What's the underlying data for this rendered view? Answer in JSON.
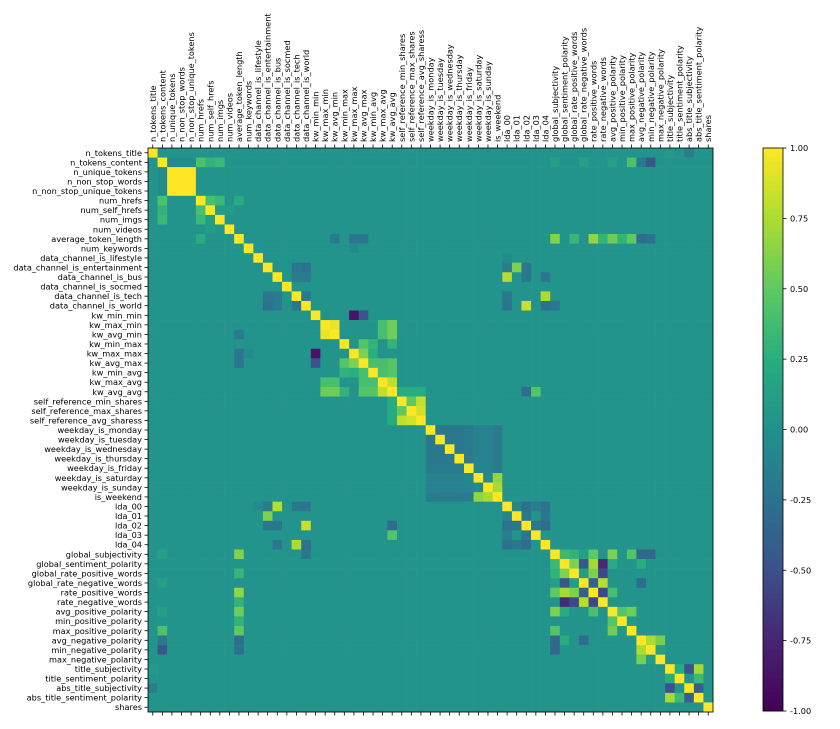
{
  "chart_data": {
    "type": "heatmap",
    "title": "",
    "xlabel": "",
    "ylabel": "",
    "labels": [
      "n_tokens_title",
      "n_tokens_content",
      "n_unique_tokens",
      "n_non_stop_words",
      "n_non_stop_unique_tokens",
      "num_hrefs",
      "num_self_hrefs",
      "num_imgs",
      "num_videos",
      "average_token_length",
      "num_keywords",
      "data_channel_is_lifestyle",
      "data_channel_is_entertainment",
      "data_channel_is_bus",
      "data_channel_is_socmed",
      "data_channel_is_tech",
      "data_channel_is_world",
      "kw_min_min",
      "kw_max_min",
      "kw_avg_min",
      "kw_min_max",
      "kw_max_max",
      "kw_avg_max",
      "kw_min_avg",
      "kw_max_avg",
      "kw_avg_avg",
      "self_reference_min_shares",
      "self_reference_max_shares",
      "self_reference_avg_sharess",
      "weekday_is_monday",
      "weekday_is_tuesday",
      "weekday_is_wednesday",
      "weekday_is_thursday",
      "weekday_is_friday",
      "weekday_is_saturday",
      "weekday_is_sunday",
      "is_weekend",
      "lda_00",
      "lda_01",
      "lda_02",
      "lda_03",
      "lda_04",
      "global_subjectivity",
      "global_sentiment_polarity",
      "global_rate_positive_words",
      "global_rate_negative_words",
      "rate_positive_words",
      "rate_negative_words",
      "avg_positive_polarity",
      "min_positive_polarity",
      "max_positive_polarity",
      "avg_negative_polarity",
      "min_negative_polarity",
      "max_negative_polarity",
      "title_subjectivity",
      "title_sentiment_polarity",
      "abs_title_subjectivity",
      "abs_title_sentiment_polarity",
      "shares"
    ],
    "vmin": -1.0,
    "vmax": 1.0,
    "colormap": "viridis",
    "colorbar_ticks": [
      "1.00",
      "0.75",
      "0.50",
      "0.25",
      "0.00",
      "-0.25",
      "-0.50",
      "-0.75",
      "-1.00"
    ],
    "colorbar_tick_values": [
      1.0,
      0.75,
      0.5,
      0.25,
      0.0,
      -0.25,
      -0.5,
      -0.75,
      -1.0
    ],
    "cells": [
      [
        2,
        3,
        1.0
      ],
      [
        3,
        2,
        1.0
      ],
      [
        2,
        4,
        1.0
      ],
      [
        4,
        2,
        1.0
      ],
      [
        3,
        4,
        1.0
      ],
      [
        4,
        3,
        1.0
      ],
      [
        1,
        2,
        -0.05
      ],
      [
        2,
        1,
        -0.05
      ],
      [
        1,
        3,
        -0.05
      ],
      [
        3,
        1,
        -0.05
      ],
      [
        1,
        4,
        -0.05
      ],
      [
        4,
        1,
        -0.05
      ],
      [
        1,
        5,
        0.42
      ],
      [
        5,
        1,
        0.42
      ],
      [
        1,
        6,
        0.3
      ],
      [
        6,
        1,
        0.3
      ],
      [
        1,
        7,
        0.34
      ],
      [
        7,
        1,
        0.34
      ],
      [
        1,
        9,
        0.03
      ],
      [
        9,
        1,
        0.03
      ],
      [
        1,
        42,
        0.13
      ],
      [
        42,
        1,
        0.13
      ],
      [
        1,
        45,
        0.13
      ],
      [
        45,
        1,
        0.13
      ],
      [
        1,
        51,
        -0.2
      ],
      [
        51,
        1,
        -0.2
      ],
      [
        1,
        52,
        -0.45
      ],
      [
        52,
        1,
        -0.45
      ],
      [
        1,
        50,
        0.42
      ],
      [
        50,
        1,
        0.42
      ],
      [
        1,
        48,
        0.13
      ],
      [
        48,
        1,
        0.13
      ],
      [
        5,
        6,
        0.4
      ],
      [
        6,
        5,
        0.4
      ],
      [
        5,
        7,
        0.34
      ],
      [
        7,
        5,
        0.34
      ],
      [
        5,
        9,
        0.22
      ],
      [
        9,
        5,
        0.22
      ],
      [
        6,
        7,
        0.1
      ],
      [
        7,
        6,
        0.1
      ],
      [
        6,
        8,
        0.1
      ],
      [
        8,
        6,
        0.1
      ],
      [
        9,
        42,
        0.62
      ],
      [
        42,
        9,
        0.62
      ],
      [
        9,
        48,
        0.55
      ],
      [
        48,
        9,
        0.55
      ],
      [
        9,
        50,
        0.5
      ],
      [
        50,
        9,
        0.5
      ],
      [
        9,
        51,
        -0.3
      ],
      [
        51,
        9,
        -0.3
      ],
      [
        9,
        52,
        -0.25
      ],
      [
        52,
        9,
        -0.25
      ],
      [
        9,
        44,
        0.32
      ],
      [
        44,
        9,
        0.32
      ],
      [
        9,
        46,
        0.66
      ],
      [
        46,
        9,
        0.66
      ],
      [
        9,
        47,
        0.3
      ],
      [
        47,
        9,
        0.3
      ],
      [
        9,
        49,
        0.3
      ],
      [
        49,
        9,
        0.3
      ],
      [
        9,
        19,
        -0.18
      ],
      [
        19,
        9,
        -0.18
      ],
      [
        9,
        21,
        -0.22
      ],
      [
        21,
        9,
        -0.22
      ],
      [
        9,
        22,
        -0.22
      ],
      [
        22,
        9,
        -0.22
      ],
      [
        10,
        21,
        -0.05
      ],
      [
        21,
        10,
        -0.05
      ],
      [
        11,
        37,
        -0.05
      ],
      [
        37,
        11,
        -0.05
      ],
      [
        12,
        38,
        0.6
      ],
      [
        38,
        12,
        0.6
      ],
      [
        12,
        37,
        -0.18
      ],
      [
        37,
        12,
        -0.18
      ],
      [
        12,
        39,
        -0.2
      ],
      [
        39,
        12,
        -0.2
      ],
      [
        13,
        37,
        0.77
      ],
      [
        37,
        13,
        0.77
      ],
      [
        13,
        39,
        -0.2
      ],
      [
        39,
        13,
        -0.2
      ],
      [
        13,
        41,
        -0.2
      ],
      [
        41,
        13,
        -0.2
      ],
      [
        13,
        16,
        -0.18
      ],
      [
        16,
        13,
        -0.18
      ],
      [
        13,
        15,
        -0.18
      ],
      [
        15,
        13,
        -0.18
      ],
      [
        15,
        41,
        0.75
      ],
      [
        41,
        15,
        0.75
      ],
      [
        15,
        16,
        -0.2
      ],
      [
        16,
        15,
        -0.2
      ],
      [
        15,
        37,
        -0.2
      ],
      [
        37,
        15,
        -0.2
      ],
      [
        16,
        39,
        0.83
      ],
      [
        39,
        16,
        0.83
      ],
      [
        16,
        42,
        -0.2
      ],
      [
        42,
        16,
        -0.2
      ],
      [
        16,
        41,
        -0.25
      ],
      [
        41,
        16,
        -0.25
      ],
      [
        16,
        37,
        -0.22
      ],
      [
        37,
        16,
        -0.22
      ],
      [
        12,
        16,
        -0.25
      ],
      [
        16,
        12,
        -0.25
      ],
      [
        12,
        15,
        -0.22
      ],
      [
        15,
        12,
        -0.22
      ],
      [
        17,
        21,
        -0.86
      ],
      [
        21,
        17,
        -0.86
      ],
      [
        17,
        22,
        -0.5
      ],
      [
        22,
        17,
        -0.5
      ],
      [
        17,
        18,
        0.0
      ],
      [
        18,
        17,
        0.0
      ],
      [
        18,
        19,
        0.94
      ],
      [
        19,
        18,
        0.94
      ],
      [
        18,
        25,
        0.55
      ],
      [
        25,
        18,
        0.55
      ],
      [
        19,
        25,
        0.55
      ],
      [
        25,
        19,
        0.55
      ],
      [
        18,
        24,
        0.4
      ],
      [
        24,
        18,
        0.4
      ],
      [
        19,
        24,
        0.4
      ],
      [
        24,
        19,
        0.4
      ],
      [
        20,
        22,
        0.45
      ],
      [
        22,
        20,
        0.45
      ],
      [
        20,
        23,
        0.3
      ],
      [
        23,
        20,
        0.3
      ],
      [
        20,
        25,
        0.3
      ],
      [
        25,
        20,
        0.3
      ],
      [
        21,
        22,
        0.6
      ],
      [
        22,
        21,
        0.6
      ],
      [
        21,
        23,
        0.25
      ],
      [
        23,
        21,
        0.25
      ],
      [
        22,
        23,
        0.4
      ],
      [
        23,
        22,
        0.4
      ],
      [
        22,
        24,
        0.4
      ],
      [
        24,
        22,
        0.4
      ],
      [
        22,
        25,
        0.45
      ],
      [
        25,
        22,
        0.45
      ],
      [
        23,
        24,
        0.4
      ],
      [
        24,
        23,
        0.4
      ],
      [
        23,
        25,
        0.45
      ],
      [
        25,
        23,
        0.45
      ],
      [
        24,
        25,
        0.81
      ],
      [
        25,
        24,
        0.81
      ],
      [
        25,
        26,
        0.22
      ],
      [
        26,
        25,
        0.22
      ],
      [
        25,
        27,
        0.22
      ],
      [
        27,
        25,
        0.22
      ],
      [
        25,
        28,
        0.22
      ],
      [
        28,
        25,
        0.22
      ],
      [
        25,
        39,
        -0.3
      ],
      [
        39,
        25,
        -0.3
      ],
      [
        25,
        40,
        0.45
      ],
      [
        40,
        25,
        0.45
      ],
      [
        26,
        27,
        0.5
      ],
      [
        27,
        26,
        0.5
      ],
      [
        26,
        28,
        0.82
      ],
      [
        28,
        26,
        0.82
      ],
      [
        27,
        28,
        0.86
      ],
      [
        28,
        27,
        0.86
      ],
      [
        29,
        30,
        -0.2
      ],
      [
        30,
        29,
        -0.2
      ],
      [
        29,
        31,
        -0.2
      ],
      [
        31,
        29,
        -0.2
      ],
      [
        29,
        32,
        -0.2
      ],
      [
        32,
        29,
        -0.2
      ],
      [
        29,
        33,
        -0.18
      ],
      [
        33,
        29,
        -0.18
      ],
      [
        29,
        34,
        -0.12
      ],
      [
        34,
        29,
        -0.12
      ],
      [
        29,
        35,
        -0.12
      ],
      [
        35,
        29,
        -0.12
      ],
      [
        30,
        31,
        -0.2
      ],
      [
        31,
        30,
        -0.2
      ],
      [
        30,
        32,
        -0.2
      ],
      [
        32,
        30,
        -0.2
      ],
      [
        30,
        33,
        -0.18
      ],
      [
        33,
        30,
        -0.18
      ],
      [
        31,
        32,
        -0.2
      ],
      [
        32,
        31,
        -0.2
      ],
      [
        31,
        33,
        -0.18
      ],
      [
        33,
        31,
        -0.18
      ],
      [
        32,
        33,
        -0.18
      ],
      [
        33,
        32,
        -0.18
      ],
      [
        30,
        34,
        -0.12
      ],
      [
        34,
        30,
        -0.12
      ],
      [
        31,
        34,
        -0.12
      ],
      [
        34,
        31,
        -0.12
      ],
      [
        32,
        34,
        -0.12
      ],
      [
        34,
        32,
        -0.12
      ],
      [
        33,
        34,
        -0.1
      ],
      [
        34,
        33,
        -0.1
      ],
      [
        30,
        35,
        -0.12
      ],
      [
        35,
        30,
        -0.12
      ],
      [
        31,
        35,
        -0.12
      ],
      [
        35,
        31,
        -0.12
      ],
      [
        32,
        35,
        -0.12
      ],
      [
        35,
        32,
        -0.12
      ],
      [
        33,
        35,
        -0.1
      ],
      [
        35,
        33,
        -0.1
      ],
      [
        34,
        35,
        -0.07
      ],
      [
        35,
        34,
        -0.07
      ],
      [
        29,
        36,
        -0.18
      ],
      [
        36,
        29,
        -0.18
      ],
      [
        30,
        36,
        -0.18
      ],
      [
        36,
        30,
        -0.18
      ],
      [
        31,
        36,
        -0.18
      ],
      [
        36,
        31,
        -0.18
      ],
      [
        32,
        36,
        -0.18
      ],
      [
        36,
        32,
        -0.18
      ],
      [
        33,
        36,
        -0.16
      ],
      [
        36,
        33,
        -0.16
      ],
      [
        34,
        36,
        0.66
      ],
      [
        36,
        34,
        0.66
      ],
      [
        35,
        36,
        0.73
      ],
      [
        36,
        35,
        0.73
      ],
      [
        37,
        38,
        -0.1
      ],
      [
        38,
        37,
        -0.1
      ],
      [
        37,
        39,
        -0.25
      ],
      [
        39,
        37,
        -0.25
      ],
      [
        37,
        40,
        -0.15
      ],
      [
        40,
        37,
        -0.15
      ],
      [
        37,
        41,
        -0.25
      ],
      [
        41,
        37,
        -0.25
      ],
      [
        38,
        39,
        -0.2
      ],
      [
        39,
        38,
        -0.2
      ],
      [
        38,
        41,
        -0.2
      ],
      [
        41,
        38,
        -0.2
      ],
      [
        39,
        41,
        -0.3
      ],
      [
        41,
        39,
        -0.3
      ],
      [
        39,
        40,
        -0.2
      ],
      [
        40,
        39,
        -0.2
      ],
      [
        42,
        43,
        0.35
      ],
      [
        43,
        42,
        0.35
      ],
      [
        42,
        44,
        0.3
      ],
      [
        44,
        42,
        0.3
      ],
      [
        42,
        45,
        0.13
      ],
      [
        45,
        42,
        0.13
      ],
      [
        42,
        46,
        0.5
      ],
      [
        46,
        42,
        0.5
      ],
      [
        42,
        48,
        0.6
      ],
      [
        48,
        42,
        0.6
      ],
      [
        42,
        50,
        0.45
      ],
      [
        50,
        42,
        0.45
      ],
      [
        42,
        51,
        -0.33
      ],
      [
        51,
        42,
        -0.33
      ],
      [
        42,
        52,
        -0.33
      ],
      [
        52,
        42,
        -0.33
      ],
      [
        43,
        44,
        0.6
      ],
      [
        44,
        43,
        0.6
      ],
      [
        43,
        45,
        -0.45
      ],
      [
        45,
        43,
        -0.45
      ],
      [
        43,
        46,
        0.72
      ],
      [
        46,
        43,
        0.72
      ],
      [
        43,
        47,
        -0.72
      ],
      [
        47,
        43,
        -0.72
      ],
      [
        43,
        48,
        0.23
      ],
      [
        48,
        43,
        0.23
      ],
      [
        43,
        51,
        0.24
      ],
      [
        51,
        43,
        0.24
      ],
      [
        44,
        45,
        0.1
      ],
      [
        45,
        44,
        0.1
      ],
      [
        44,
        46,
        0.6
      ],
      [
        46,
        44,
        0.6
      ],
      [
        44,
        47,
        -0.55
      ],
      [
        47,
        44,
        -0.55
      ],
      [
        45,
        46,
        -0.38
      ],
      [
        46,
        45,
        -0.38
      ],
      [
        45,
        47,
        0.78
      ],
      [
        47,
        45,
        0.78
      ],
      [
        45,
        51,
        -0.3
      ],
      [
        51,
        45,
        -0.3
      ],
      [
        46,
        47,
        -0.55
      ],
      [
        47,
        46,
        -0.55
      ],
      [
        46,
        48,
        0.4
      ],
      [
        48,
        46,
        0.4
      ],
      [
        48,
        49,
        0.45
      ],
      [
        49,
        48,
        0.45
      ],
      [
        48,
        50,
        0.55
      ],
      [
        50,
        48,
        0.55
      ],
      [
        49,
        50,
        0.08
      ],
      [
        50,
        49,
        0.08
      ],
      [
        51,
        52,
        0.75
      ],
      [
        52,
        51,
        0.75
      ],
      [
        51,
        53,
        0.58
      ],
      [
        53,
        51,
        0.58
      ],
      [
        52,
        53,
        0.1
      ],
      [
        53,
        52,
        0.1
      ],
      [
        54,
        56,
        -0.5
      ],
      [
        56,
        54,
        -0.5
      ],
      [
        54,
        57,
        0.72
      ],
      [
        57,
        54,
        0.72
      ],
      [
        55,
        57,
        0.35
      ],
      [
        57,
        55,
        0.35
      ],
      [
        55,
        54,
        0.23
      ],
      [
        54,
        55,
        0.23
      ],
      [
        56,
        57,
        -0.4
      ],
      [
        57,
        56,
        -0.4
      ],
      [
        0,
        56,
        -0.15
      ],
      [
        56,
        0,
        -0.15
      ],
      [
        0,
        54,
        0.08
      ],
      [
        54,
        0,
        0.08
      ]
    ]
  }
}
